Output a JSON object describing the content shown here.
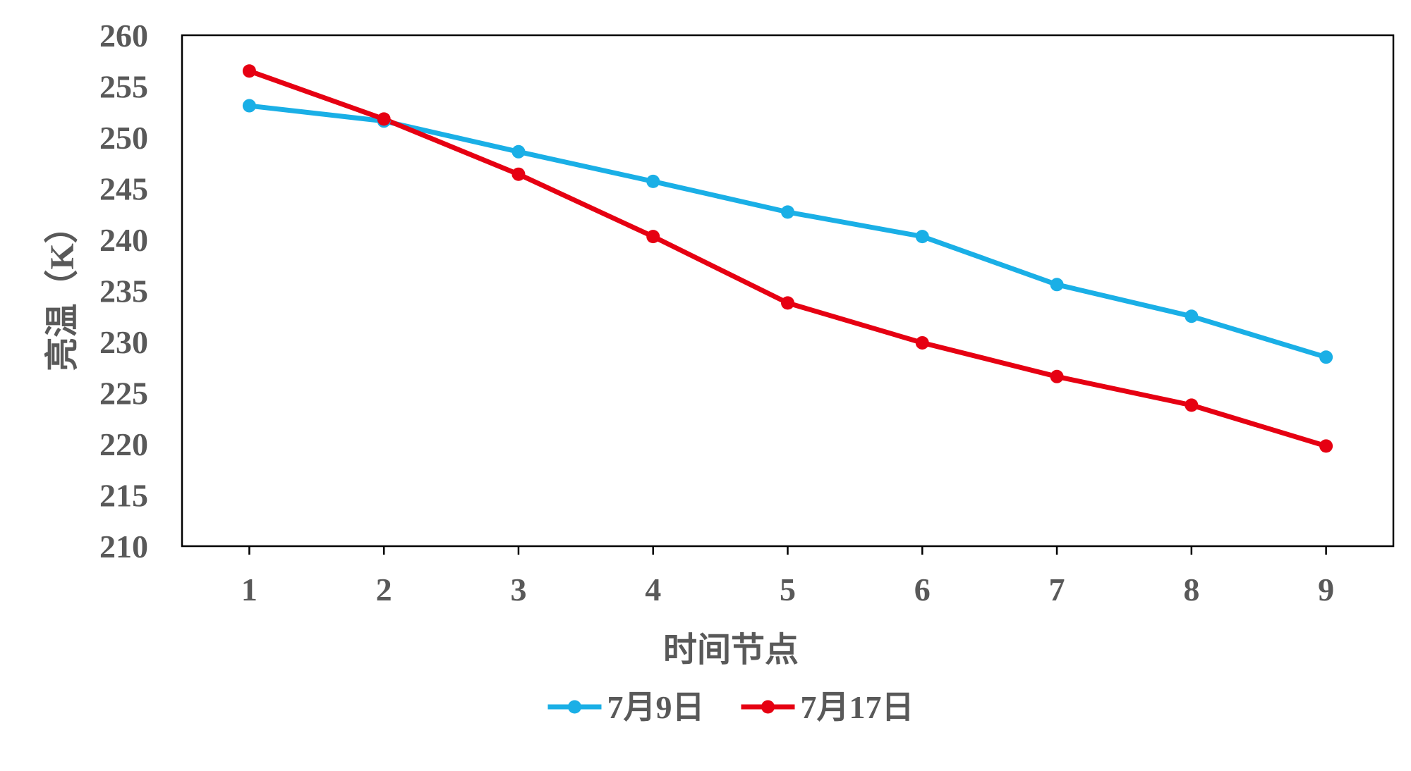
{
  "chart_data": {
    "type": "line",
    "xlabel": "时间节点",
    "ylabel": "亮温（K）",
    "x": [
      1,
      2,
      3,
      4,
      5,
      6,
      7,
      8,
      9
    ],
    "ylim": [
      210,
      260
    ],
    "yticks": [
      210,
      215,
      220,
      225,
      230,
      235,
      240,
      245,
      250,
      255,
      260
    ],
    "grid": false,
    "legend_position": "bottom",
    "series": [
      {
        "name": "7月9日",
        "color": "#1AAFE6",
        "values": [
          253.1,
          251.6,
          248.6,
          245.7,
          242.7,
          240.3,
          235.6,
          232.5,
          228.5
        ]
      },
      {
        "name": "7月17日",
        "color": "#E60012",
        "values": [
          256.5,
          251.8,
          246.4,
          240.3,
          233.8,
          229.9,
          226.6,
          223.8,
          219.8
        ]
      }
    ]
  }
}
